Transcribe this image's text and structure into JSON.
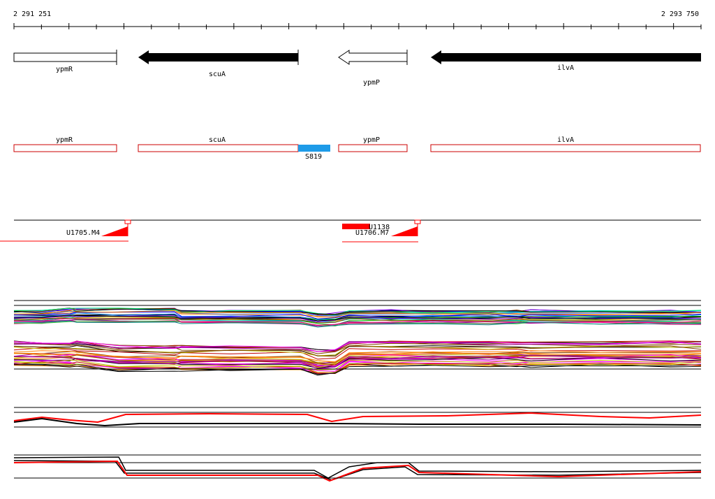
{
  "ruler": {
    "start_label": "2 291 251",
    "end_label": "2 293 750"
  },
  "genes": [
    {
      "name": "ypmR",
      "style": "box-outline"
    },
    {
      "name": "scuA",
      "style": "arrow-solid-left"
    },
    {
      "name": "ypmP",
      "style": "arrow-outline-left"
    },
    {
      "name": "ilvA",
      "style": "arrow-solid-left"
    }
  ],
  "transcripts": [
    {
      "name": "ypmR"
    },
    {
      "name": "scuA"
    },
    {
      "name": "ypmP"
    },
    {
      "name": "ilvA"
    }
  ],
  "feature": {
    "label": "S819",
    "color": "#1e9be8"
  },
  "probes": [
    {
      "label": "U1705.M4"
    },
    {
      "label": "U1138"
    },
    {
      "label": "U1706.M7"
    }
  ],
  "colors": {
    "transcript_outline": "#cc0000",
    "probe_red": "#ff0000",
    "gene_black": "#000000"
  }
}
